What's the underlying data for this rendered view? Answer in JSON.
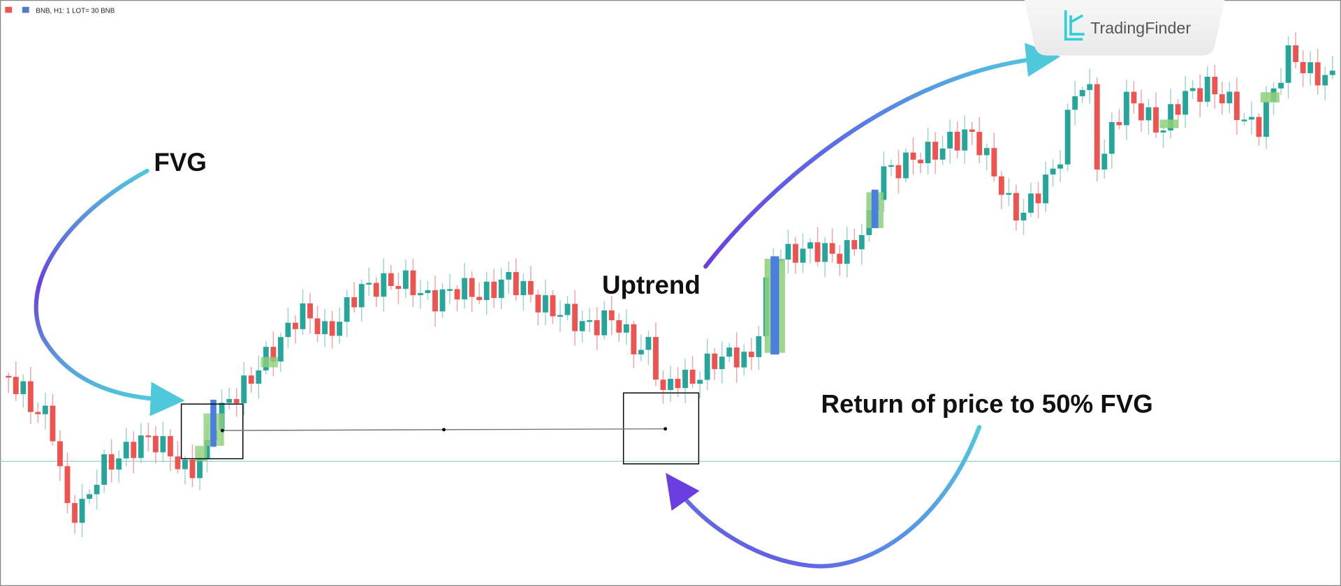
{
  "toolbar": {
    "symbol": "BNB, H1: 1 LOT= 30 BNB"
  },
  "logo": {
    "text": "TradingFinder"
  },
  "annotations": {
    "fvg": "FVG",
    "uptrend": "Uptrend",
    "return": "Return of price to 50% FVG"
  }
}
